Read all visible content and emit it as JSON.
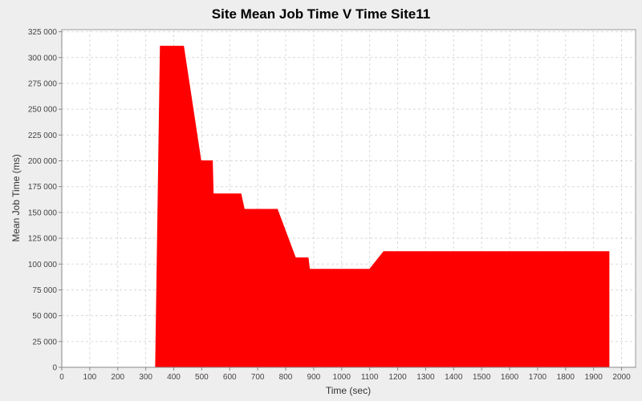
{
  "chart_data": {
    "type": "area",
    "title": "Site Mean Job Time V Time Site11",
    "xlabel": "Time (sec)",
    "ylabel": "Mean Job Time (ms)",
    "xlim": [
      0,
      2050
    ],
    "ylim": [
      0,
      327000
    ],
    "x_ticks": [
      0,
      100,
      200,
      300,
      400,
      500,
      600,
      700,
      800,
      900,
      1000,
      1100,
      1200,
      1300,
      1400,
      1500,
      1600,
      1700,
      1800,
      1900,
      2000
    ],
    "y_ticks": [
      0,
      25000,
      50000,
      75000,
      100000,
      125000,
      150000,
      175000,
      200000,
      225000,
      250000,
      275000,
      300000,
      325000
    ],
    "x_tick_labels": [
      "0",
      "100",
      "200",
      "300",
      "400",
      "500",
      "600",
      "700",
      "800",
      "900",
      "1000",
      "1100",
      "1200",
      "1300",
      "1400",
      "1500",
      "1600",
      "1700",
      "1800",
      "1900",
      "2000"
    ],
    "y_tick_labels": [
      "0",
      "25 000",
      "50 000",
      "75 000",
      "100 000",
      "125 000",
      "150 000",
      "175 000",
      "200 000",
      "225 000",
      "250 000",
      "275 000",
      "300 000",
      "325 000"
    ],
    "grid": true,
    "series": [
      {
        "name": "Site11",
        "color": "#ff0000",
        "x": [
          335,
          352,
          435,
          497,
          538,
          541,
          640,
          652,
          770,
          835,
          880,
          885,
          1100,
          1150,
          1955
        ],
        "y": [
          0,
          311000,
          311000,
          200000,
          200000,
          168000,
          168000,
          153000,
          153000,
          106000,
          106000,
          95000,
          95000,
          112000,
          112000
        ]
      }
    ]
  }
}
